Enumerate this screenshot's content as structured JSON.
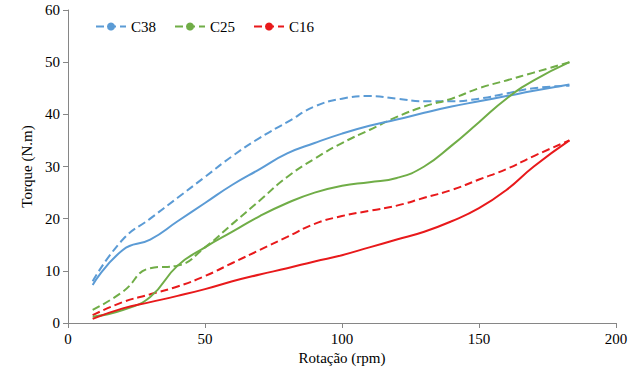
{
  "chart_data": {
    "type": "line",
    "x_label": "Rotação (rpm)",
    "y_label": "Torque (N.m)",
    "x": [
      9,
      20,
      30,
      40,
      50,
      60,
      70,
      80,
      90,
      100,
      110,
      120,
      130,
      140,
      150,
      160,
      170,
      183
    ],
    "series": [
      {
        "name": "C38",
        "color": "#5b9bd5",
        "line_style": "dashed",
        "values": [
          8,
          16,
          20,
          24,
          28,
          32,
          35.5,
          38.5,
          41.5,
          43,
          43.5,
          43,
          42.5,
          42.5,
          43,
          44,
          45,
          45.5
        ]
      },
      {
        "name": "C25",
        "color": "#70ad47",
        "line_style": "dashed",
        "values": [
          2.5,
          6,
          10.5,
          11,
          14.5,
          19,
          23.5,
          28,
          31.5,
          34.5,
          37,
          39.5,
          41.5,
          43,
          45,
          46.5,
          48,
          50
        ]
      },
      {
        "name": "C16",
        "color": "#e8191b",
        "line_style": "dashed",
        "values": [
          1.5,
          4,
          5.5,
          7,
          9,
          11.5,
          14,
          16.5,
          19,
          20.5,
          21.5,
          22.5,
          24,
          25.5,
          27.5,
          29.5,
          32,
          35
        ]
      },
      {
        "color": "#5b9bd5",
        "line_style": "solid",
        "values": [
          7.3,
          14,
          16,
          19.5,
          23,
          26.5,
          29.5,
          32.5,
          34.5,
          36.3,
          37.8,
          39,
          40.3,
          41.5,
          42.5,
          43.5,
          44.5,
          45.7
        ]
      },
      {
        "color": "#70ad47",
        "line_style": "solid",
        "values": [
          1.2,
          2.5,
          5,
          11,
          14.5,
          17.5,
          20.5,
          23,
          25,
          26.3,
          27,
          27.8,
          30,
          34,
          38.5,
          43,
          46.5,
          50
        ]
      },
      {
        "color": "#e8191b",
        "line_style": "solid",
        "values": [
          0.8,
          2.8,
          4,
          5.2,
          6.5,
          8,
          9.3,
          10.5,
          11.8,
          13,
          14.5,
          16,
          17.5,
          19.5,
          22,
          25.5,
          30,
          35
        ]
      }
    ],
    "xlim": [
      0,
      200
    ],
    "xticks": [
      0,
      50,
      100,
      150,
      200
    ],
    "ylim": [
      0,
      60
    ],
    "yticks": [
      0,
      10,
      20,
      30,
      40,
      50,
      60
    ],
    "grid": false,
    "legend": "upper left"
  }
}
